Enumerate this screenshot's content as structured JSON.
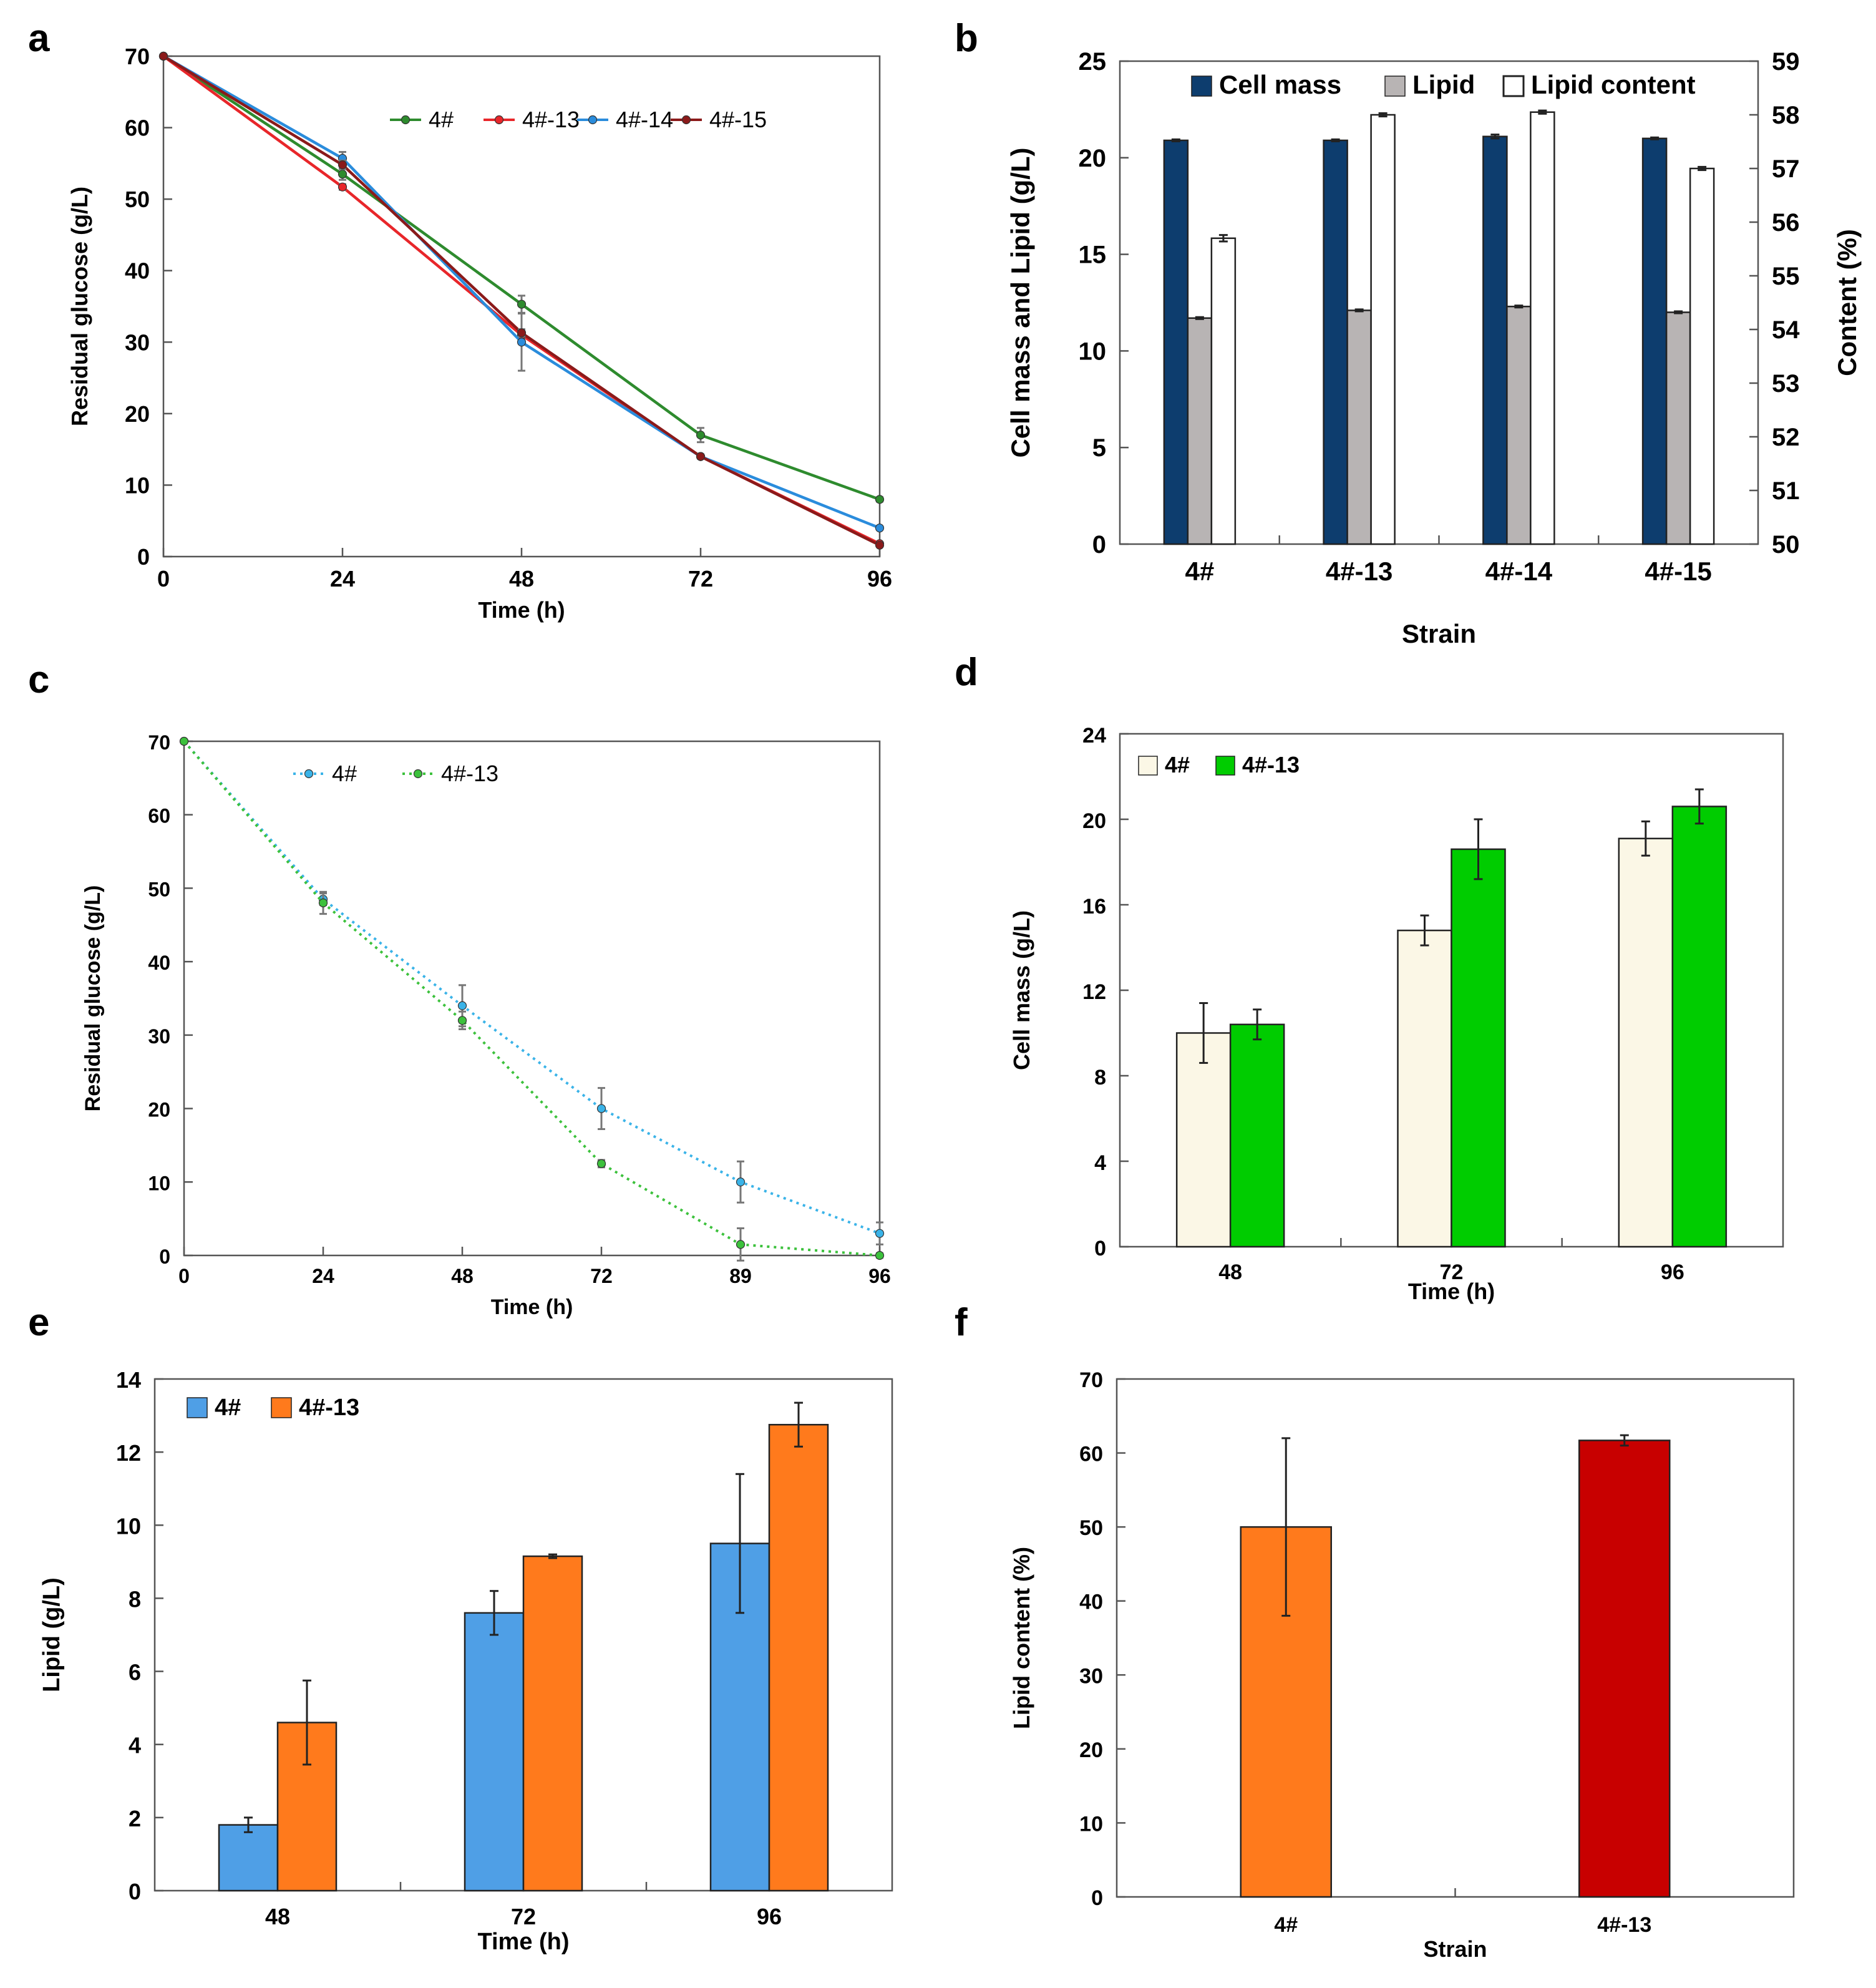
{
  "chart_data": [
    {
      "panel": "a",
      "type": "line",
      "title": "",
      "xlabel": "Time (h)",
      "ylabel": "Residual glucose (g/L)",
      "x": [
        0,
        24,
        48,
        72,
        96
      ],
      "xticks": [
        "0",
        "24",
        "48",
        "72",
        "96"
      ],
      "xlim": [
        0,
        96
      ],
      "ylim": [
        0,
        70
      ],
      "yticks": [
        "0",
        "10",
        "20",
        "30",
        "40",
        "50",
        "60",
        "70"
      ],
      "legend_position": "top-right",
      "series": [
        {
          "name": "4#",
          "color": "#2e8b2e",
          "values": [
            70,
            53.5,
            35.3,
            17,
            8
          ],
          "errors": [
            0,
            0.8,
            1.2,
            1.0,
            0.3
          ]
        },
        {
          "name": "4#-13",
          "color": "#e8262a",
          "values": [
            70,
            51.7,
            31.0,
            14,
            1.8
          ],
          "errors": [
            0,
            0.4,
            0.5,
            0.3,
            0.2
          ]
        },
        {
          "name": "4#-14",
          "color": "#2a8cdc",
          "values": [
            70,
            55.7,
            30.0,
            14,
            4
          ],
          "errors": [
            0,
            0.9,
            4.0,
            0.3,
            0.2
          ]
        },
        {
          "name": "4#-15",
          "color": "#8b1a1a",
          "values": [
            70,
            54.8,
            31.3,
            14,
            1.6
          ],
          "errors": [
            0,
            0.6,
            0.5,
            0.3,
            0.2
          ]
        }
      ]
    },
    {
      "panel": "b",
      "type": "bar",
      "title": "",
      "xlabel": "Strain",
      "ylabel": "Cell mass and Lipid (g/L)",
      "ylabel_right": "Content (%)",
      "categories": [
        "4#",
        "4#-13",
        "4#-14",
        "4#-15"
      ],
      "ylim": [
        0,
        25
      ],
      "yticks": [
        "0",
        "5",
        "10",
        "15",
        "20",
        "25"
      ],
      "ylim_right": [
        50,
        59
      ],
      "yticks_right": [
        "50",
        "51",
        "52",
        "53",
        "54",
        "55",
        "56",
        "57",
        "58",
        "59"
      ],
      "legend_position": "top",
      "series": [
        {
          "name": "Cell mass",
          "axis": "left",
          "color": "#0d3d6e",
          "values": [
            20.9,
            20.9,
            21.1,
            21.0
          ],
          "errors": [
            0.05,
            0.05,
            0.1,
            0.05
          ]
        },
        {
          "name": "Lipid",
          "axis": "left",
          "color": "#b8b4b4",
          "values": [
            11.7,
            12.1,
            12.3,
            12.0
          ],
          "errors": [
            0.05,
            0.05,
            0.05,
            0.05
          ]
        },
        {
          "name": "Lipid content",
          "axis": "right",
          "color": "#ffffff",
          "values": [
            55.7,
            58.0,
            58.05,
            57.0
          ],
          "errors": [
            0.06,
            0.03,
            0.03,
            0.03
          ]
        }
      ]
    },
    {
      "panel": "c",
      "type": "line",
      "title": "",
      "xlabel": "Time (h)",
      "ylabel": "Residual glucose (g/L)",
      "x": [
        0,
        24,
        48,
        72,
        89,
        96
      ],
      "xticks": [
        "0",
        "24",
        "48",
        "72",
        "89",
        "96"
      ],
      "ylim": [
        0,
        70
      ],
      "yticks": [
        "0",
        "10",
        "20",
        "30",
        "40",
        "50",
        "60",
        "70"
      ],
      "legend_position": "top",
      "series": [
        {
          "name": "4#",
          "color": "#3ab3e8",
          "values": [
            70,
            48.5,
            34,
            20,
            10,
            3
          ],
          "errors": [
            0,
            0.8,
            2.8,
            2.8,
            2.8,
            1.5
          ]
        },
        {
          "name": "4#-13",
          "color": "#3cc13c",
          "values": [
            70,
            48,
            32,
            12.5,
            1.5,
            0
          ],
          "errors": [
            0,
            1.5,
            1.2,
            0.5,
            2.2,
            0.3
          ]
        }
      ]
    },
    {
      "panel": "d",
      "type": "bar",
      "title": "",
      "xlabel": "Time (h)",
      "ylabel": "Cell mass (g/L)",
      "categories": [
        "48",
        "72",
        "96"
      ],
      "ylim": [
        0,
        24
      ],
      "yticks": [
        "0",
        "4",
        "8",
        "12",
        "16",
        "20",
        "24"
      ],
      "legend_position": "top-left",
      "series": [
        {
          "name": "4#",
          "color": "#fbf7e6",
          "values": [
            10.0,
            14.8,
            19.1
          ],
          "errors": [
            1.4,
            0.7,
            0.8
          ]
        },
        {
          "name": "4#-13",
          "color": "#00cc00",
          "values": [
            10.4,
            18.6,
            20.6
          ],
          "errors": [
            0.7,
            1.4,
            0.8
          ]
        }
      ]
    },
    {
      "panel": "e",
      "type": "bar",
      "title": "",
      "xlabel": "Time (h)",
      "ylabel": "Lipid (g/L)",
      "categories": [
        "48",
        "72",
        "96"
      ],
      "ylim": [
        0,
        14
      ],
      "yticks": [
        "0",
        "2",
        "4",
        "6",
        "8",
        "10",
        "12",
        "14"
      ],
      "legend_position": "top-left",
      "series": [
        {
          "name": "4#",
          "color": "#4f9fe6",
          "values": [
            1.8,
            7.6,
            9.5
          ],
          "errors": [
            0.2,
            0.6,
            1.9
          ]
        },
        {
          "name": "4#-13",
          "color": "#ff7a1c",
          "values": [
            4.6,
            9.15,
            12.75
          ],
          "errors": [
            1.15,
            0.05,
            0.6
          ]
        }
      ]
    },
    {
      "panel": "f",
      "type": "bar",
      "title": "",
      "xlabel": "Strain",
      "ylabel": "Lipid content (%)",
      "categories": [
        "4#",
        "4#-13"
      ],
      "ylim": [
        0,
        70
      ],
      "yticks": [
        "0",
        "10",
        "20",
        "30",
        "40",
        "50",
        "60",
        "70"
      ],
      "values": [
        50,
        61.7
      ],
      "errors": [
        12,
        0.7
      ],
      "colors": [
        "#ff7a1c",
        "#c80000"
      ]
    }
  ]
}
